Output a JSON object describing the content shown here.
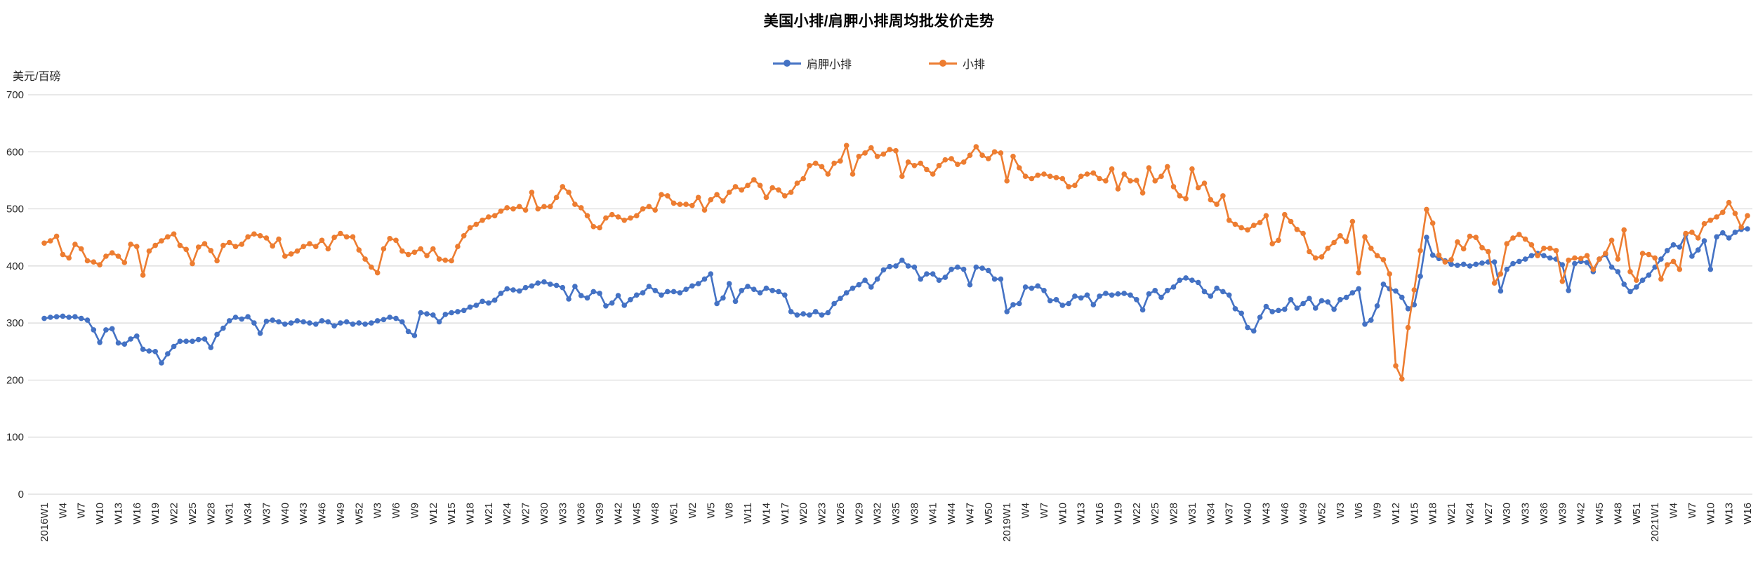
{
  "chart_data": {
    "type": "line",
    "title": "美国小排/肩胛小排周均批发价走势",
    "unit_label": "美元/百磅",
    "legend_position": "top-center",
    "grid": "horizontal",
    "ylim": [
      0,
      700
    ],
    "y_ticks": [
      0,
      100,
      200,
      300,
      400,
      500,
      600,
      700
    ],
    "x_tick_every": 3,
    "marker": "circle",
    "colors": {
      "gridline": "#D9D9D9",
      "axis_text": "#262626",
      "title_text": "#000000",
      "background": "#ffffff"
    },
    "categories": [
      "2016W1",
      "W2",
      "W3",
      "W4",
      "W5",
      "W6",
      "W7",
      "W8",
      "W9",
      "W10",
      "W11",
      "W12",
      "W13",
      "W14",
      "W15",
      "W16",
      "W17",
      "W18",
      "W19",
      "W20",
      "W21",
      "W22",
      "W23",
      "W24",
      "W25",
      "W26",
      "W27",
      "W28",
      "W29",
      "W30",
      "W31",
      "W32",
      "W33",
      "W34",
      "W35",
      "W36",
      "W37",
      "W38",
      "W39",
      "W40",
      "W41",
      "W42",
      "W43",
      "W44",
      "W45",
      "W46",
      "W47",
      "W48",
      "W49",
      "W50",
      "W51",
      "W52",
      "W1",
      "W2",
      "W3",
      "W4",
      "W5",
      "W6",
      "W7",
      "W8",
      "W9",
      "W10",
      "W11",
      "W12",
      "W13",
      "W14",
      "W15",
      "W16",
      "W17",
      "W18",
      "W19",
      "W20",
      "W21",
      "W22",
      "W23",
      "W24",
      "W25",
      "W26",
      "W27",
      "W28",
      "W29",
      "W30",
      "W31",
      "W32",
      "W33",
      "W34",
      "W35",
      "W36",
      "W37",
      "W38",
      "W39",
      "W40",
      "W41",
      "W42",
      "W43",
      "W44",
      "W45",
      "W46",
      "W47",
      "W48",
      "W49",
      "W50",
      "W51",
      "W52",
      "W1",
      "W2",
      "W3",
      "W4",
      "W5",
      "W6",
      "W7",
      "W8",
      "W9",
      "W10",
      "W11",
      "W12",
      "W13",
      "W14",
      "W15",
      "W16",
      "W17",
      "W18",
      "W19",
      "W20",
      "W21",
      "W22",
      "W23",
      "W24",
      "W25",
      "W26",
      "W27",
      "W28",
      "W29",
      "W30",
      "W31",
      "W32",
      "W33",
      "W34",
      "W35",
      "W36",
      "W37",
      "W38",
      "W39",
      "W40",
      "W41",
      "W42",
      "W43",
      "W44",
      "W45",
      "W46",
      "W47",
      "W48",
      "W49",
      "W50",
      "W51",
      "W52",
      "2019W1",
      "W2",
      "W3",
      "W4",
      "W5",
      "W6",
      "W7",
      "W8",
      "W9",
      "W10",
      "W11",
      "W12",
      "W13",
      "W14",
      "W15",
      "W16",
      "W17",
      "W18",
      "W19",
      "W20",
      "W21",
      "W22",
      "W23",
      "W24",
      "W25",
      "W26",
      "W27",
      "W28",
      "W29",
      "W30",
      "W31",
      "W32",
      "W33",
      "W34",
      "W35",
      "W36",
      "W37",
      "W38",
      "W39",
      "W40",
      "W41",
      "W42",
      "W43",
      "W44",
      "W45",
      "W46",
      "W47",
      "W48",
      "W49",
      "W50",
      "W51",
      "W52",
      "W1",
      "W2",
      "W3",
      "W4",
      "W5",
      "W6",
      "W7",
      "W8",
      "W9",
      "W10",
      "W11",
      "W12",
      "W13",
      "W14",
      "W15",
      "W16",
      "W17",
      "W18",
      "W19",
      "W20",
      "W21",
      "W22",
      "W23",
      "W24",
      "W25",
      "W26",
      "W27",
      "W28",
      "W29",
      "W30",
      "W31",
      "W32",
      "W33",
      "W34",
      "W35",
      "W36",
      "W37",
      "W38",
      "W39",
      "W40",
      "W41",
      "W42",
      "W43",
      "W44",
      "W45",
      "W46",
      "W47",
      "W48",
      "W49",
      "W50",
      "W51",
      "W52",
      "W53",
      "2021W1",
      "W2",
      "W3",
      "W4",
      "W5",
      "W6",
      "W7",
      "W8",
      "W9",
      "W10",
      "W11",
      "W12",
      "W13",
      "W14",
      "W15",
      "W16"
    ],
    "series": [
      {
        "name": "肩胛小排",
        "color": "#4472C4",
        "values": [
          308,
          310,
          311,
          312,
          310,
          311,
          308,
          305,
          288,
          266,
          288,
          290,
          265,
          263,
          272,
          277,
          254,
          251,
          250,
          230,
          246,
          259,
          268,
          268,
          268,
          271,
          272,
          257,
          280,
          291,
          304,
          310,
          307,
          311,
          300,
          282,
          303,
          305,
          302,
          298,
          300,
          304,
          302,
          300,
          298,
          304,
          302,
          295,
          300,
          302,
          298,
          300,
          298,
          300,
          304,
          306,
          310,
          308,
          302,
          285,
          278,
          318,
          316,
          314,
          302,
          315,
          318,
          320,
          322,
          328,
          331,
          338,
          335,
          340,
          352,
          360,
          358,
          356,
          362,
          365,
          370,
          372,
          368,
          366,
          362,
          342,
          364,
          348,
          344,
          355,
          352,
          330,
          335,
          348,
          331,
          341,
          349,
          353,
          364,
          357,
          349,
          355,
          355,
          353,
          359,
          365,
          369,
          377,
          386,
          334,
          344,
          369,
          338,
          357,
          364,
          359,
          353,
          361,
          357,
          355,
          349,
          320,
          314,
          316,
          314,
          320,
          314,
          318,
          334,
          343,
          353,
          361,
          367,
          375,
          363,
          377,
          393,
          399,
          400,
          410,
          400,
          398,
          377,
          386,
          386,
          375,
          380,
          394,
          398,
          394,
          367,
          398,
          396,
          392,
          377,
          377,
          320,
          332,
          334,
          363,
          361,
          365,
          357,
          339,
          341,
          331,
          334,
          347,
          344,
          349,
          332,
          347,
          352,
          349,
          351,
          352,
          349,
          341,
          323,
          351,
          357,
          345,
          357,
          363,
          375,
          379,
          375,
          371,
          355,
          347,
          361,
          355,
          349,
          325,
          317,
          292,
          286,
          310,
          329,
          320,
          322,
          324,
          341,
          326,
          334,
          343,
          326,
          339,
          337,
          324,
          341,
          345,
          353,
          360,
          298,
          305,
          330,
          368,
          360,
          356,
          345,
          325,
          332,
          382,
          450,
          419,
          413,
          409,
          403,
          401,
          403,
          400,
          403,
          405,
          407,
          407,
          356,
          394,
          404,
          408,
          412,
          418,
          422,
          418,
          414,
          412,
          402,
          357,
          404,
          408,
          406,
          390,
          412,
          420,
          398,
          390,
          368,
          355,
          363,
          375,
          384,
          398,
          412,
          427,
          437,
          433,
          455,
          417,
          428,
          444,
          394,
          451,
          458,
          449,
          459,
          464,
          465
        ]
      },
      {
        "name": "小排",
        "color": "#ED7D31",
        "values": [
          440,
          444,
          452,
          420,
          414,
          438,
          430,
          409,
          407,
          402,
          417,
          423,
          417,
          406,
          438,
          434,
          384,
          426,
          436,
          444,
          451,
          456,
          436,
          429,
          404,
          433,
          439,
          427,
          409,
          436,
          441,
          434,
          438,
          451,
          456,
          453,
          449,
          435,
          447,
          417,
          421,
          426,
          434,
          439,
          434,
          445,
          430,
          450,
          457,
          451,
          451,
          428,
          412,
          398,
          388,
          430,
          448,
          445,
          426,
          420,
          424,
          430,
          418,
          430,
          412,
          410,
          409,
          434,
          453,
          467,
          473,
          480,
          486,
          488,
          496,
          502,
          500,
          504,
          498,
          529,
          500,
          504,
          504,
          520,
          539,
          529,
          508,
          502,
          488,
          469,
          467,
          484,
          490,
          486,
          480,
          484,
          488,
          500,
          504,
          498,
          525,
          523,
          510,
          508,
          508,
          506,
          520,
          498,
          516,
          525,
          514,
          529,
          539,
          533,
          541,
          551,
          541,
          520,
          537,
          533,
          523,
          529,
          545,
          553,
          576,
          580,
          574,
          561,
          580,
          584,
          611,
          561,
          592,
          598,
          607,
          592,
          596,
          604,
          602,
          557,
          582,
          576,
          580,
          569,
          561,
          576,
          586,
          588,
          578,
          582,
          594,
          609,
          594,
          588,
          600,
          598,
          549,
          592,
          572,
          557,
          553,
          559,
          561,
          557,
          555,
          553,
          539,
          541,
          557,
          561,
          563,
          553,
          549,
          570,
          535,
          561,
          549,
          550,
          528,
          572,
          549,
          557,
          574,
          539,
          523,
          518,
          570,
          537,
          545,
          516,
          508,
          523,
          480,
          473,
          467,
          463,
          471,
          476,
          488,
          439,
          445,
          490,
          478,
          464,
          457,
          425,
          414,
          416,
          431,
          441,
          453,
          443,
          478,
          388,
          451,
          431,
          418,
          411,
          386,
          225,
          202,
          292,
          358,
          427,
          499,
          475,
          419,
          407,
          411,
          442,
          430,
          452,
          450,
          432,
          425,
          370,
          386,
          439,
          449,
          455,
          447,
          437,
          418,
          431,
          431,
          427,
          373,
          410,
          414,
          413,
          418,
          394,
          412,
          422,
          445,
          412,
          463,
          390,
          375,
          422,
          420,
          414,
          377,
          402,
          408,
          394,
          457,
          459,
          449,
          474,
          480,
          486,
          494,
          511,
          492,
          468,
          488
        ]
      }
    ]
  }
}
